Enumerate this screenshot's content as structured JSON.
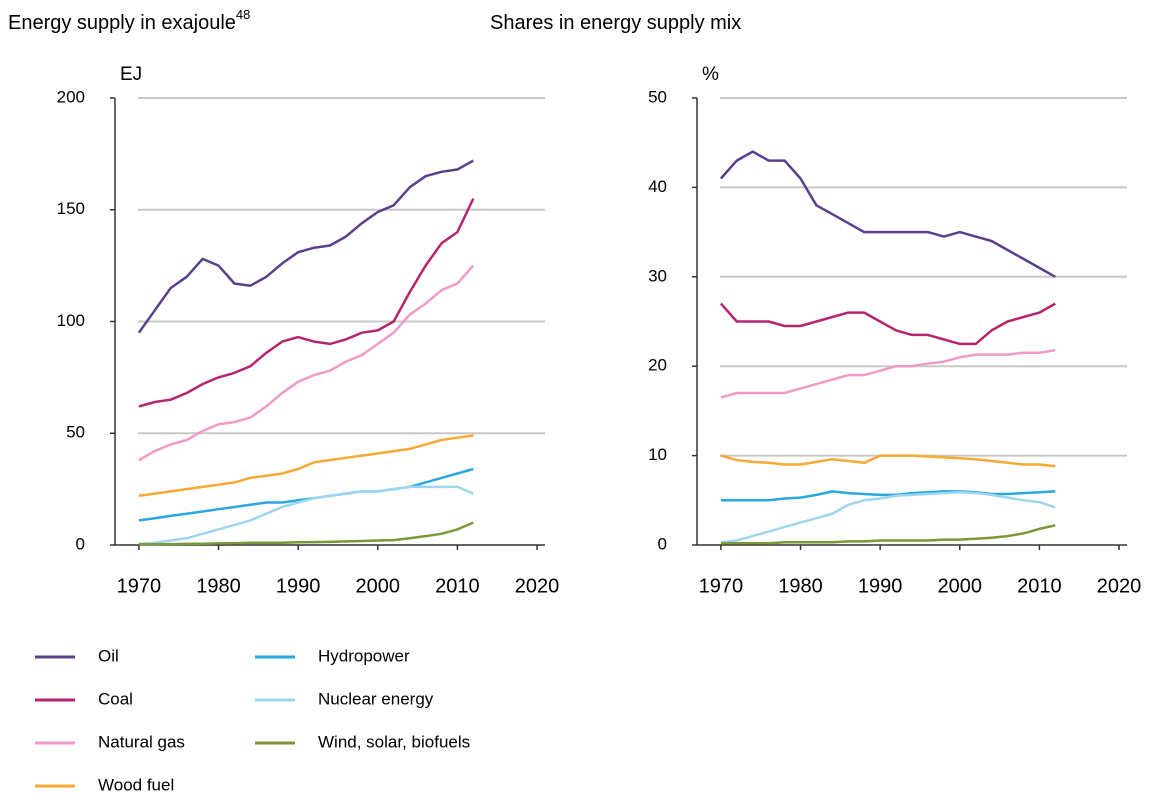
{
  "chart_data": [
    {
      "type": "line",
      "title": "Energy supply in exajoule",
      "title_footnote": "48",
      "ylabel": "EJ",
      "x": [
        1970,
        1972,
        1974,
        1976,
        1978,
        1980,
        1982,
        1984,
        1986,
        1988,
        1990,
        1992,
        1994,
        1996,
        1998,
        2000,
        2002,
        2004,
        2006,
        2008,
        2010,
        2012
      ],
      "xlim": [
        1967,
        2021
      ],
      "xticks": [
        1970,
        1980,
        1990,
        2000,
        2010,
        2020
      ],
      "ylim": [
        0,
        200
      ],
      "yticks": [
        0,
        50,
        100,
        150,
        200
      ],
      "grid": true,
      "series": [
        {
          "name": "Oil",
          "color": "#5b3f8c",
          "values": [
            95,
            105,
            115,
            120,
            128,
            125,
            117,
            116,
            120,
            126,
            131,
            133,
            134,
            138,
            144,
            149,
            152,
            160,
            165,
            167,
            168,
            172
          ]
        },
        {
          "name": "Coal",
          "color": "#b5256e",
          "values": [
            62,
            64,
            65,
            68,
            72,
            75,
            77,
            80,
            86,
            91,
            93,
            91,
            90,
            92,
            95,
            96,
            100,
            113,
            125,
            135,
            140,
            155
          ]
        },
        {
          "name": "Natural gas",
          "color": "#f19ac7",
          "values": [
            38,
            42,
            45,
            47,
            51,
            54,
            55,
            57,
            62,
            68,
            73,
            76,
            78,
            82,
            85,
            90,
            95,
            103,
            108,
            114,
            117,
            125
          ]
        },
        {
          "name": "Wood fuel",
          "color": "#f7a933",
          "values": [
            22,
            23,
            24,
            25,
            26,
            27,
            28,
            30,
            31,
            32,
            34,
            37,
            38,
            39,
            40,
            41,
            42,
            43,
            45,
            47,
            48,
            49
          ]
        },
        {
          "name": "Hydropower",
          "color": "#2aa7de",
          "values": [
            11,
            12,
            13,
            14,
            15,
            16,
            17,
            18,
            19,
            19,
            20,
            21,
            22,
            23,
            24,
            24,
            25,
            26,
            28,
            30,
            32,
            34
          ]
        },
        {
          "name": "Nuclear energy",
          "color": "#9fd6ef",
          "values": [
            0.5,
            1,
            2,
            3,
            5,
            7,
            9,
            11,
            14,
            17,
            19,
            21,
            22,
            23,
            24,
            24,
            25,
            26,
            26,
            26,
            26,
            23
          ]
        },
        {
          "name": "Wind, solar, biofuels",
          "color": "#7a9a3a",
          "values": [
            0.3,
            0.3,
            0.4,
            0.5,
            0.6,
            0.7,
            0.8,
            1,
            1,
            1,
            1.2,
            1.3,
            1.4,
            1.6,
            1.8,
            2,
            2.2,
            3,
            4,
            5,
            7,
            10
          ]
        }
      ]
    },
    {
      "type": "line",
      "title": "Shares in energy supply mix",
      "ylabel": "%",
      "x": [
        1970,
        1972,
        1974,
        1976,
        1978,
        1980,
        1982,
        1984,
        1986,
        1988,
        1990,
        1992,
        1994,
        1996,
        1998,
        2000,
        2002,
        2004,
        2006,
        2008,
        2010,
        2012
      ],
      "xlim": [
        1967,
        2021
      ],
      "xticks": [
        1970,
        1980,
        1990,
        2000,
        2010,
        2020
      ],
      "ylim": [
        0,
        50
      ],
      "yticks": [
        0,
        10,
        20,
        30,
        40,
        50
      ],
      "grid": true,
      "series": [
        {
          "color": "#5b3f8c",
          "values": [
            41,
            43,
            44,
            43,
            43,
            41,
            38,
            37,
            36,
            35,
            35,
            35,
            35,
            35,
            34.5,
            35,
            34.5,
            34,
            33,
            32,
            31,
            30
          ]
        },
        {
          "color": "#b5256e",
          "values": [
            27,
            25,
            25,
            25,
            24.5,
            24.5,
            25,
            25.5,
            26,
            26,
            25,
            24,
            23.5,
            23.5,
            23,
            22.5,
            22.5,
            24,
            25,
            25.5,
            26,
            27
          ]
        },
        {
          "color": "#f19ac7",
          "values": [
            16.5,
            17,
            17,
            17,
            17,
            17.5,
            18,
            18.5,
            19,
            19,
            19.5,
            20,
            20,
            20.3,
            20.5,
            21,
            21.3,
            21.3,
            21.3,
            21.5,
            21.5,
            21.8
          ]
        },
        {
          "color": "#f7a933",
          "values": [
            10,
            9.5,
            9.3,
            9.2,
            9,
            9,
            9.3,
            9.6,
            9.4,
            9.2,
            10,
            10,
            10,
            9.9,
            9.8,
            9.7,
            9.6,
            9.4,
            9.2,
            9,
            9,
            8.8
          ]
        },
        {
          "color": "#2aa7de",
          "values": [
            5,
            5,
            5,
            5,
            5.2,
            5.3,
            5.6,
            6,
            5.8,
            5.7,
            5.6,
            5.6,
            5.8,
            5.9,
            6,
            6,
            5.9,
            5.7,
            5.7,
            5.8,
            5.9,
            6
          ]
        },
        {
          "color": "#9fd6ef",
          "values": [
            0.3,
            0.5,
            1,
            1.5,
            2,
            2.5,
            3,
            3.5,
            4.5,
            5,
            5.2,
            5.5,
            5.6,
            5.7,
            5.8,
            5.9,
            5.8,
            5.6,
            5.3,
            5,
            4.8,
            4.2
          ]
        },
        {
          "color": "#7a9a3a",
          "values": [
            0.2,
            0.2,
            0.2,
            0.2,
            0.3,
            0.3,
            0.3,
            0.3,
            0.4,
            0.4,
            0.5,
            0.5,
            0.5,
            0.5,
            0.6,
            0.6,
            0.7,
            0.8,
            1,
            1.3,
            1.8,
            2.2
          ]
        }
      ]
    }
  ]
}
